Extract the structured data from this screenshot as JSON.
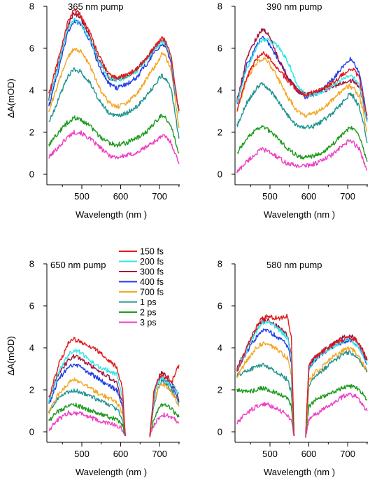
{
  "legend": [
    {
      "label": "150 fs",
      "color": "#e41a1c"
    },
    {
      "label": "200 fs",
      "color": "#33e6e6"
    },
    {
      "label": "300 fs",
      "color": "#a0123c"
    },
    {
      "label": "400 fs",
      "color": "#1f3fe6"
    },
    {
      "label": "700 fs",
      "color": "#f5a623"
    },
    {
      "label": "1 ps",
      "color": "#1f9490"
    },
    {
      "label": "2 ps",
      "color": "#1e9a1e"
    },
    {
      "label": "3 ps",
      "color": "#ee3fc4"
    }
  ],
  "chart_data": [
    {
      "type": "line",
      "panel": "top-left",
      "annotation": "365 nm pump",
      "xlabel": "Wavelength (nm )",
      "ylabel": "ΔA(mOD)",
      "xlim": [
        410,
        752
      ],
      "ylim": [
        -0.5,
        8
      ],
      "xticks": [
        500,
        600,
        700
      ],
      "yticks": [
        0,
        2,
        4,
        6,
        8
      ],
      "grid": false,
      "x": [
        415,
        440,
        465,
        480,
        495,
        520,
        545,
        570,
        590,
        615,
        640,
        665,
        690,
        705,
        715,
        730,
        740,
        750
      ],
      "series": [
        {
          "name": "150 fs",
          "values": [
            3.8,
            5.5,
            7.3,
            7.9,
            7.6,
            6.8,
            5.6,
            4.8,
            4.6,
            4.7,
            5.0,
            5.5,
            6.1,
            6.5,
            6.4,
            5.6,
            4.2,
            3.0
          ]
        },
        {
          "name": "200 fs",
          "values": [
            3.5,
            5.2,
            7.0,
            7.4,
            7.2,
            6.5,
            5.3,
            4.6,
            4.5,
            4.6,
            4.9,
            5.4,
            6.0,
            6.3,
            6.3,
            5.5,
            4.0,
            2.9
          ]
        },
        {
          "name": "300 fs",
          "values": [
            3.6,
            5.3,
            7.1,
            7.7,
            7.5,
            6.6,
            5.4,
            4.6,
            4.5,
            4.7,
            5.0,
            5.5,
            6.1,
            6.4,
            6.3,
            5.4,
            4.1,
            3.0
          ]
        },
        {
          "name": "400 fs",
          "values": [
            3.2,
            5.0,
            6.8,
            7.3,
            7.2,
            6.4,
            5.1,
            4.3,
            4.1,
            4.3,
            4.6,
            5.2,
            5.9,
            6.2,
            6.1,
            5.3,
            3.9,
            3.1
          ]
        },
        {
          "name": "700 fs",
          "values": [
            3.0,
            4.4,
            5.6,
            6.0,
            5.9,
            5.2,
            4.1,
            3.4,
            3.2,
            3.4,
            3.8,
            4.5,
            5.2,
            5.7,
            5.6,
            5.0,
            3.6,
            2.2
          ]
        },
        {
          "name": "1 ps",
          "values": [
            2.4,
            3.6,
            4.7,
            5.0,
            4.9,
            4.4,
            3.5,
            2.9,
            2.8,
            2.9,
            3.2,
            3.7,
            4.3,
            4.7,
            4.6,
            4.0,
            2.9,
            1.7
          ]
        },
        {
          "name": "2 ps",
          "values": [
            1.4,
            2.0,
            2.5,
            2.7,
            2.6,
            2.3,
            1.8,
            1.5,
            1.4,
            1.5,
            1.7,
            2.0,
            2.5,
            2.8,
            2.7,
            2.3,
            1.6,
            1.0
          ]
        },
        {
          "name": "3 ps",
          "values": [
            0.8,
            1.3,
            1.8,
            2.0,
            2.0,
            1.7,
            1.3,
            0.9,
            0.8,
            0.9,
            1.0,
            1.3,
            1.6,
            1.8,
            1.8,
            1.5,
            1.0,
            0.5
          ]
        }
      ]
    },
    {
      "type": "line",
      "panel": "top-right",
      "annotation": "390 nm pump",
      "xlabel": "Wavelength (nm )",
      "ylabel": "",
      "xlim": [
        410,
        752
      ],
      "ylim": [
        -0.5,
        8
      ],
      "xticks": [
        500,
        600,
        700
      ],
      "yticks": [
        0,
        2,
        4,
        6,
        8
      ],
      "grid": false,
      "x": [
        415,
        440,
        465,
        480,
        495,
        520,
        545,
        570,
        590,
        615,
        640,
        665,
        690,
        705,
        715,
        730,
        740,
        750
      ],
      "series": [
        {
          "name": "150 fs",
          "values": [
            3.0,
            4.6,
            5.5,
            5.8,
            5.6,
            5.0,
            4.5,
            4.0,
            3.8,
            3.9,
            4.1,
            4.4,
            4.8,
            5.0,
            5.0,
            4.6,
            3.6,
            2.8
          ]
        },
        {
          "name": "200 fs",
          "values": [
            3.4,
            5.0,
            6.0,
            6.4,
            6.4,
            6.1,
            5.4,
            4.3,
            3.8,
            3.8,
            4.0,
            4.3,
            4.6,
            4.7,
            4.6,
            4.3,
            3.4,
            2.5
          ]
        },
        {
          "name": "300 fs",
          "values": [
            3.5,
            5.5,
            6.5,
            6.9,
            6.7,
            5.6,
            4.6,
            4.0,
            3.8,
            3.9,
            4.0,
            4.2,
            4.4,
            4.5,
            4.4,
            4.2,
            3.4,
            2.5
          ]
        },
        {
          "name": "400 fs",
          "values": [
            3.3,
            5.2,
            6.1,
            6.5,
            6.3,
            5.5,
            4.7,
            4.0,
            3.7,
            3.8,
            4.1,
            4.6,
            5.2,
            5.5,
            5.4,
            4.8,
            3.8,
            2.6
          ]
        },
        {
          "name": "700 fs",
          "values": [
            3.0,
            4.5,
            5.3,
            5.5,
            5.4,
            4.6,
            3.7,
            3.0,
            2.8,
            2.9,
            3.2,
            3.6,
            4.1,
            4.2,
            4.1,
            3.7,
            3.0,
            2.0
          ]
        },
        {
          "name": "1 ps",
          "values": [
            2.3,
            3.4,
            4.1,
            4.3,
            4.1,
            3.5,
            2.8,
            2.3,
            2.2,
            2.3,
            2.6,
            3.0,
            3.5,
            3.8,
            3.7,
            3.2,
            2.5,
            1.5
          ]
        },
        {
          "name": "2 ps",
          "values": [
            1.0,
            1.7,
            2.1,
            2.3,
            2.1,
            1.7,
            1.2,
            0.9,
            0.8,
            0.9,
            1.1,
            1.5,
            2.0,
            2.2,
            2.2,
            1.8,
            1.2,
            0.6
          ]
        },
        {
          "name": "3 ps",
          "values": [
            0.1,
            0.6,
            1.0,
            1.2,
            1.1,
            0.8,
            0.5,
            0.4,
            0.4,
            0.5,
            0.7,
            1.0,
            1.4,
            1.6,
            1.5,
            1.2,
            0.7,
            0.2
          ]
        }
      ]
    },
    {
      "type": "line",
      "panel": "bottom-left",
      "annotation": "650 nm pump",
      "xlabel": "Wavelength (nm )",
      "ylabel": "ΔA(mOD)",
      "xlim": [
        410,
        752
      ],
      "ylim": [
        -0.5,
        8
      ],
      "xticks": [
        500,
        600,
        700
      ],
      "yticks": [
        0,
        2,
        4,
        6,
        8
      ],
      "grid": false,
      "x": [
        415,
        440,
        465,
        480,
        495,
        520,
        545,
        570,
        590,
        605,
        612,
        null,
        675,
        685,
        695,
        705,
        715,
        730,
        740,
        750
      ],
      "series": [
        {
          "name": "150 fs",
          "values": [
            1.6,
            3.2,
            4.2,
            4.4,
            4.3,
            4.1,
            3.8,
            3.4,
            3.1,
            2.0,
            -0.2,
            null,
            -0.2,
            1.8,
            2.5,
            2.7,
            2.6,
            2.3,
            2.8,
            3.2
          ]
        },
        {
          "name": "200 fs",
          "values": [
            1.4,
            2.8,
            3.7,
            3.9,
            3.8,
            3.4,
            3.1,
            2.9,
            2.7,
            1.6,
            -0.2,
            null,
            -0.2,
            1.6,
            2.3,
            2.6,
            2.5,
            2.2,
            2.1,
            1.8
          ]
        },
        {
          "name": "300 fs",
          "values": [
            1.5,
            2.8,
            3.4,
            3.6,
            3.5,
            3.2,
            2.9,
            2.6,
            2.3,
            1.4,
            -0.2,
            null,
            -0.2,
            1.7,
            2.5,
            2.8,
            2.7,
            2.4,
            2.1,
            1.5
          ]
        },
        {
          "name": "400 fs",
          "values": [
            1.3,
            2.5,
            3.1,
            3.2,
            3.1,
            2.8,
            2.5,
            2.2,
            2.0,
            1.2,
            -0.2,
            null,
            -0.2,
            1.6,
            2.3,
            2.6,
            2.5,
            2.2,
            1.9,
            1.4
          ]
        },
        {
          "name": "700 fs",
          "values": [
            0.9,
            1.8,
            2.3,
            2.5,
            2.4,
            2.1,
            1.8,
            1.6,
            1.4,
            0.9,
            -0.2,
            null,
            -0.2,
            1.3,
            2.0,
            2.3,
            2.2,
            1.9,
            1.6,
            1.2
          ]
        },
        {
          "name": "1 ps",
          "values": [
            1.0,
            1.6,
            1.9,
            2.0,
            1.9,
            1.7,
            1.5,
            1.3,
            1.1,
            0.6,
            -0.2,
            null,
            -0.2,
            1.2,
            2.0,
            2.4,
            2.3,
            2.0,
            1.7,
            1.3
          ]
        },
        {
          "name": "2 ps",
          "values": [
            0.5,
            1.0,
            1.2,
            1.3,
            1.2,
            1.0,
            0.9,
            0.7,
            0.6,
            0.3,
            -0.2,
            null,
            -0.2,
            0.6,
            1.0,
            1.3,
            1.3,
            1.1,
            0.9,
            0.7
          ]
        },
        {
          "name": "3 ps",
          "values": [
            0.1,
            0.6,
            0.9,
            0.9,
            0.9,
            0.7,
            0.5,
            0.4,
            0.3,
            0.1,
            -0.2,
            null,
            -0.2,
            0.3,
            0.6,
            0.8,
            0.8,
            0.7,
            0.6,
            0.4
          ]
        }
      ]
    },
    {
      "type": "line",
      "panel": "bottom-right",
      "annotation": "580 nm pump",
      "xlabel": "Wavelength (nm )",
      "ylabel": "",
      "xlim": [
        410,
        752
      ],
      "ylim": [
        -0.5,
        8
      ],
      "xticks": [
        500,
        600,
        700
      ],
      "yticks": [
        0,
        2,
        4,
        6,
        8
      ],
      "grid": false,
      "x": [
        415,
        440,
        465,
        480,
        495,
        520,
        545,
        555,
        562,
        null,
        592,
        600,
        615,
        640,
        665,
        690,
        705,
        720,
        735,
        750
      ],
      "series": [
        {
          "name": "150 fs",
          "values": [
            2.8,
            4.0,
            5.0,
            5.4,
            5.5,
            5.4,
            5.5,
            4.5,
            -0.2,
            null,
            -0.2,
            3.2,
            3.5,
            3.9,
            4.2,
            4.4,
            4.5,
            4.4,
            4.0,
            3.5
          ]
        },
        {
          "name": "200 fs",
          "values": [
            2.9,
            3.9,
            4.8,
            5.2,
            5.3,
            4.9,
            4.5,
            3.6,
            -0.2,
            null,
            -0.2,
            3.0,
            3.4,
            3.8,
            4.1,
            4.3,
            4.4,
            4.2,
            3.8,
            3.2
          ]
        },
        {
          "name": "300 fs",
          "values": [
            3.0,
            4.0,
            4.9,
            5.3,
            5.3,
            5.0,
            4.6,
            3.7,
            -0.2,
            null,
            -0.2,
            3.1,
            3.5,
            3.9,
            4.2,
            4.5,
            4.6,
            4.4,
            4.0,
            3.4
          ]
        },
        {
          "name": "400 fs",
          "values": [
            3.0,
            3.8,
            4.5,
            4.8,
            4.8,
            4.5,
            4.1,
            3.3,
            -0.2,
            null,
            -0.2,
            3.0,
            3.4,
            3.8,
            4.1,
            4.3,
            4.4,
            4.2,
            3.8,
            3.2
          ]
        },
        {
          "name": "700 fs",
          "values": [
            2.6,
            3.4,
            4.0,
            4.2,
            4.2,
            3.9,
            3.5,
            2.7,
            -0.2,
            null,
            -0.2,
            2.4,
            2.8,
            3.2,
            3.6,
            3.9,
            4.0,
            3.8,
            3.4,
            2.9
          ]
        },
        {
          "name": "1 ps",
          "values": [
            2.7,
            2.9,
            3.1,
            3.2,
            3.1,
            2.8,
            2.5,
            1.9,
            -0.2,
            null,
            -0.2,
            2.2,
            2.6,
            3.0,
            3.4,
            3.7,
            3.8,
            3.6,
            3.3,
            2.9
          ]
        },
        {
          "name": "2 ps",
          "values": [
            2.0,
            1.9,
            2.0,
            2.1,
            2.0,
            1.8,
            1.6,
            1.2,
            -0.2,
            null,
            -0.2,
            1.2,
            1.5,
            1.7,
            1.9,
            2.1,
            2.2,
            2.1,
            1.9,
            1.5
          ]
        },
        {
          "name": "3 ps",
          "values": [
            0.4,
            0.9,
            1.2,
            1.3,
            1.3,
            1.1,
            0.8,
            0.5,
            -0.2,
            null,
            -0.2,
            0.6,
            0.8,
            1.1,
            1.4,
            1.7,
            1.8,
            1.7,
            1.4,
            1.0
          ]
        }
      ]
    }
  ]
}
